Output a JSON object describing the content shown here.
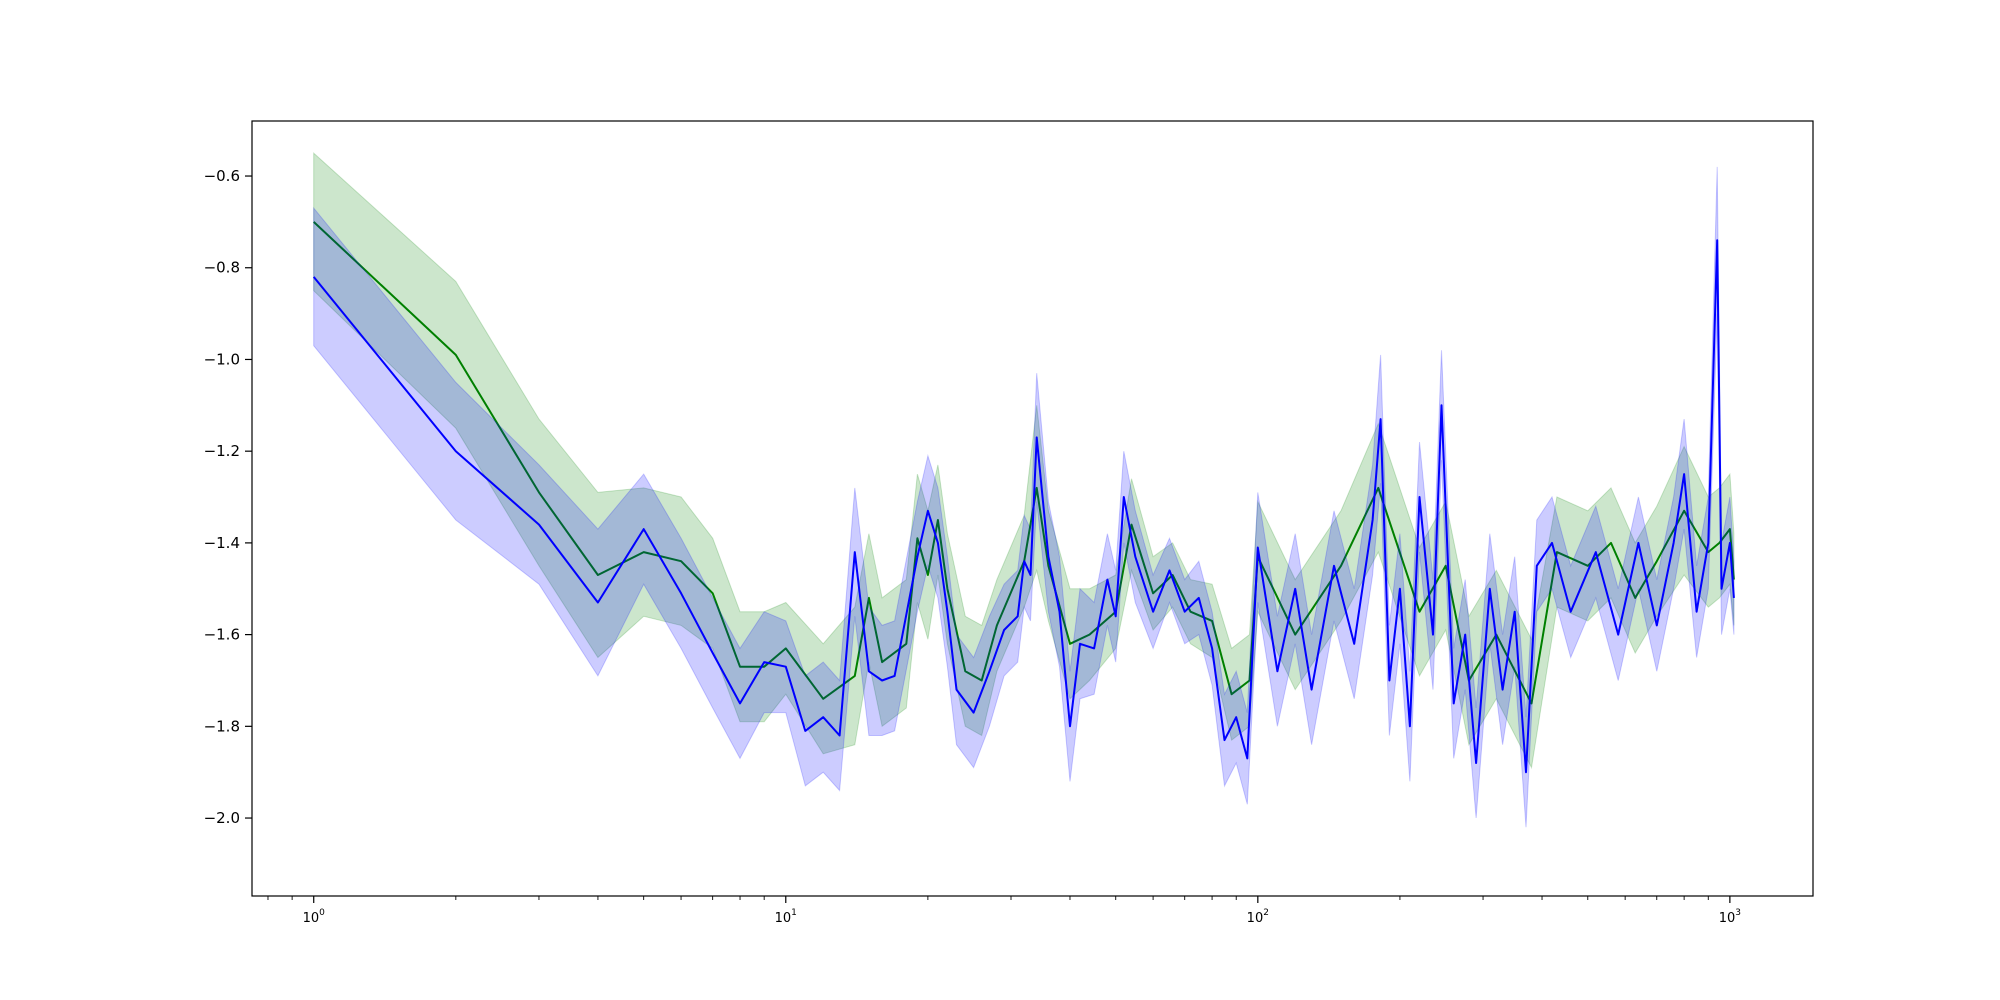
{
  "chart_data": {
    "type": "line",
    "title": "",
    "xlabel": "",
    "ylabel": "",
    "xscale": "log",
    "xlim": [
      0.74,
      1500
    ],
    "ylim": [
      -2.17,
      -0.48
    ],
    "grid": false,
    "legend": "none",
    "x_ticks": [
      {
        "value": 1,
        "base": "10",
        "exp": "0"
      },
      {
        "value": 10,
        "base": "10",
        "exp": "1"
      },
      {
        "value": 100,
        "base": "10",
        "exp": "2"
      },
      {
        "value": 1000,
        "base": "10",
        "exp": "3"
      }
    ],
    "y_ticks": [
      {
        "value": -0.6,
        "label": "−0.6"
      },
      {
        "value": -0.8,
        "label": "−0.8"
      },
      {
        "value": -1.0,
        "label": "−1.0"
      },
      {
        "value": -1.2,
        "label": "−1.2"
      },
      {
        "value": -1.4,
        "label": "−1.4"
      },
      {
        "value": -1.6,
        "label": "−1.6"
      },
      {
        "value": -1.8,
        "label": "−1.8"
      },
      {
        "value": -2.0,
        "label": "−2.0"
      }
    ],
    "series": [
      {
        "color": "#008000",
        "band_color": "#008000",
        "band_opacity": 0.2,
        "points": [
          [
            1,
            -0.7,
            0.15
          ],
          [
            2,
            -0.99,
            0.16
          ],
          [
            3,
            -1.29,
            0.16
          ],
          [
            4,
            -1.47,
            0.18
          ],
          [
            5,
            -1.42,
            0.14
          ],
          [
            6,
            -1.44,
            0.14
          ],
          [
            7,
            -1.51,
            0.12
          ],
          [
            8,
            -1.67,
            0.12
          ],
          [
            9,
            -1.67,
            0.12
          ],
          [
            10,
            -1.63,
            0.1
          ],
          [
            12,
            -1.74,
            0.12
          ],
          [
            14,
            -1.69,
            0.15
          ],
          [
            15,
            -1.52,
            0.14
          ],
          [
            16,
            -1.66,
            0.14
          ],
          [
            18,
            -1.62,
            0.14
          ],
          [
            19,
            -1.39,
            0.14
          ],
          [
            20,
            -1.47,
            0.14
          ],
          [
            21,
            -1.35,
            0.12
          ],
          [
            22,
            -1.5,
            0.12
          ],
          [
            24,
            -1.68,
            0.12
          ],
          [
            26,
            -1.7,
            0.12
          ],
          [
            28,
            -1.58,
            0.1
          ],
          [
            32,
            -1.44,
            0.1
          ],
          [
            34,
            -1.28,
            0.18
          ],
          [
            36,
            -1.45,
            0.12
          ],
          [
            40,
            -1.62,
            0.12
          ],
          [
            44,
            -1.6,
            0.1
          ],
          [
            50,
            -1.55,
            0.08
          ],
          [
            54,
            -1.36,
            0.1
          ],
          [
            60,
            -1.51,
            0.08
          ],
          [
            66,
            -1.47,
            0.07
          ],
          [
            72,
            -1.55,
            0.07
          ],
          [
            80,
            -1.57,
            0.08
          ],
          [
            88,
            -1.73,
            0.1
          ],
          [
            96,
            -1.7,
            0.1
          ],
          [
            100,
            -1.43,
            0.12
          ],
          [
            120,
            -1.6,
            0.12
          ],
          [
            150,
            -1.45,
            0.12
          ],
          [
            180,
            -1.28,
            0.14
          ],
          [
            220,
            -1.55,
            0.14
          ],
          [
            250,
            -1.45,
            0.14
          ],
          [
            280,
            -1.7,
            0.14
          ],
          [
            320,
            -1.6,
            0.14
          ],
          [
            380,
            -1.75,
            0.14
          ],
          [
            430,
            -1.42,
            0.12
          ],
          [
            500,
            -1.45,
            0.12
          ],
          [
            560,
            -1.4,
            0.12
          ],
          [
            630,
            -1.52,
            0.12
          ],
          [
            700,
            -1.44,
            0.12
          ],
          [
            800,
            -1.33,
            0.14
          ],
          [
            900,
            -1.42,
            0.12
          ],
          [
            950,
            -1.4,
            0.12
          ],
          [
            1000,
            -1.37,
            0.12
          ],
          [
            1020,
            -1.48,
            0.1
          ]
        ]
      },
      {
        "color": "#0000ff",
        "band_color": "#0000ff",
        "band_opacity": 0.2,
        "points": [
          [
            1,
            -0.82,
            0.15
          ],
          [
            2,
            -1.2,
            0.15
          ],
          [
            3,
            -1.36,
            0.13
          ],
          [
            4,
            -1.53,
            0.16
          ],
          [
            5,
            -1.37,
            0.12
          ],
          [
            6,
            -1.51,
            0.12
          ],
          [
            7,
            -1.64,
            0.12
          ],
          [
            8,
            -1.75,
            0.12
          ],
          [
            9,
            -1.66,
            0.11
          ],
          [
            10,
            -1.67,
            0.1
          ],
          [
            11,
            -1.81,
            0.12
          ],
          [
            12,
            -1.78,
            0.12
          ],
          [
            13,
            -1.82,
            0.12
          ],
          [
            14,
            -1.42,
            0.14
          ],
          [
            15,
            -1.68,
            0.14
          ],
          [
            16,
            -1.7,
            0.12
          ],
          [
            17,
            -1.69,
            0.12
          ],
          [
            19,
            -1.43,
            0.12
          ],
          [
            20,
            -1.33,
            0.12
          ],
          [
            21,
            -1.4,
            0.12
          ],
          [
            22,
            -1.55,
            0.12
          ],
          [
            23,
            -1.72,
            0.12
          ],
          [
            25,
            -1.77,
            0.12
          ],
          [
            27,
            -1.68,
            0.12
          ],
          [
            29,
            -1.59,
            0.1
          ],
          [
            31,
            -1.56,
            0.1
          ],
          [
            32,
            -1.44,
            0.1
          ],
          [
            33,
            -1.47,
            0.1
          ],
          [
            34,
            -1.17,
            0.14
          ],
          [
            36,
            -1.43,
            0.12
          ],
          [
            38,
            -1.55,
            0.12
          ],
          [
            40,
            -1.8,
            0.12
          ],
          [
            42,
            -1.62,
            0.12
          ],
          [
            45,
            -1.63,
            0.1
          ],
          [
            48,
            -1.48,
            0.1
          ],
          [
            50,
            -1.56,
            0.1
          ],
          [
            52,
            -1.3,
            0.1
          ],
          [
            55,
            -1.43,
            0.1
          ],
          [
            60,
            -1.55,
            0.08
          ],
          [
            65,
            -1.46,
            0.07
          ],
          [
            70,
            -1.55,
            0.07
          ],
          [
            75,
            -1.52,
            0.08
          ],
          [
            80,
            -1.63,
            0.08
          ],
          [
            85,
            -1.83,
            0.1
          ],
          [
            90,
            -1.78,
            0.1
          ],
          [
            95,
            -1.87,
            0.1
          ],
          [
            100,
            -1.41,
            0.12
          ],
          [
            110,
            -1.68,
            0.12
          ],
          [
            120,
            -1.5,
            0.12
          ],
          [
            130,
            -1.72,
            0.12
          ],
          [
            145,
            -1.45,
            0.12
          ],
          [
            160,
            -1.62,
            0.12
          ],
          [
            175,
            -1.35,
            0.12
          ],
          [
            182,
            -1.13,
            0.14
          ],
          [
            190,
            -1.7,
            0.12
          ],
          [
            200,
            -1.5,
            0.12
          ],
          [
            210,
            -1.8,
            0.12
          ],
          [
            220,
            -1.3,
            0.12
          ],
          [
            235,
            -1.6,
            0.12
          ],
          [
            245,
            -1.1,
            0.12
          ],
          [
            260,
            -1.75,
            0.12
          ],
          [
            275,
            -1.6,
            0.12
          ],
          [
            290,
            -1.88,
            0.12
          ],
          [
            310,
            -1.5,
            0.12
          ],
          [
            330,
            -1.72,
            0.12
          ],
          [
            350,
            -1.55,
            0.12
          ],
          [
            370,
            -1.9,
            0.12
          ],
          [
            390,
            -1.45,
            0.1
          ],
          [
            420,
            -1.4,
            0.1
          ],
          [
            460,
            -1.55,
            0.1
          ],
          [
            520,
            -1.42,
            0.1
          ],
          [
            580,
            -1.6,
            0.1
          ],
          [
            640,
            -1.4,
            0.1
          ],
          [
            700,
            -1.58,
            0.1
          ],
          [
            760,
            -1.4,
            0.1
          ],
          [
            800,
            -1.25,
            0.12
          ],
          [
            850,
            -1.55,
            0.1
          ],
          [
            900,
            -1.4,
            0.1
          ],
          [
            940,
            -0.74,
            0.16
          ],
          [
            960,
            -1.5,
            0.1
          ],
          [
            1000,
            -1.4,
            0.1
          ],
          [
            1020,
            -1.52,
            0.08
          ]
        ]
      }
    ]
  }
}
